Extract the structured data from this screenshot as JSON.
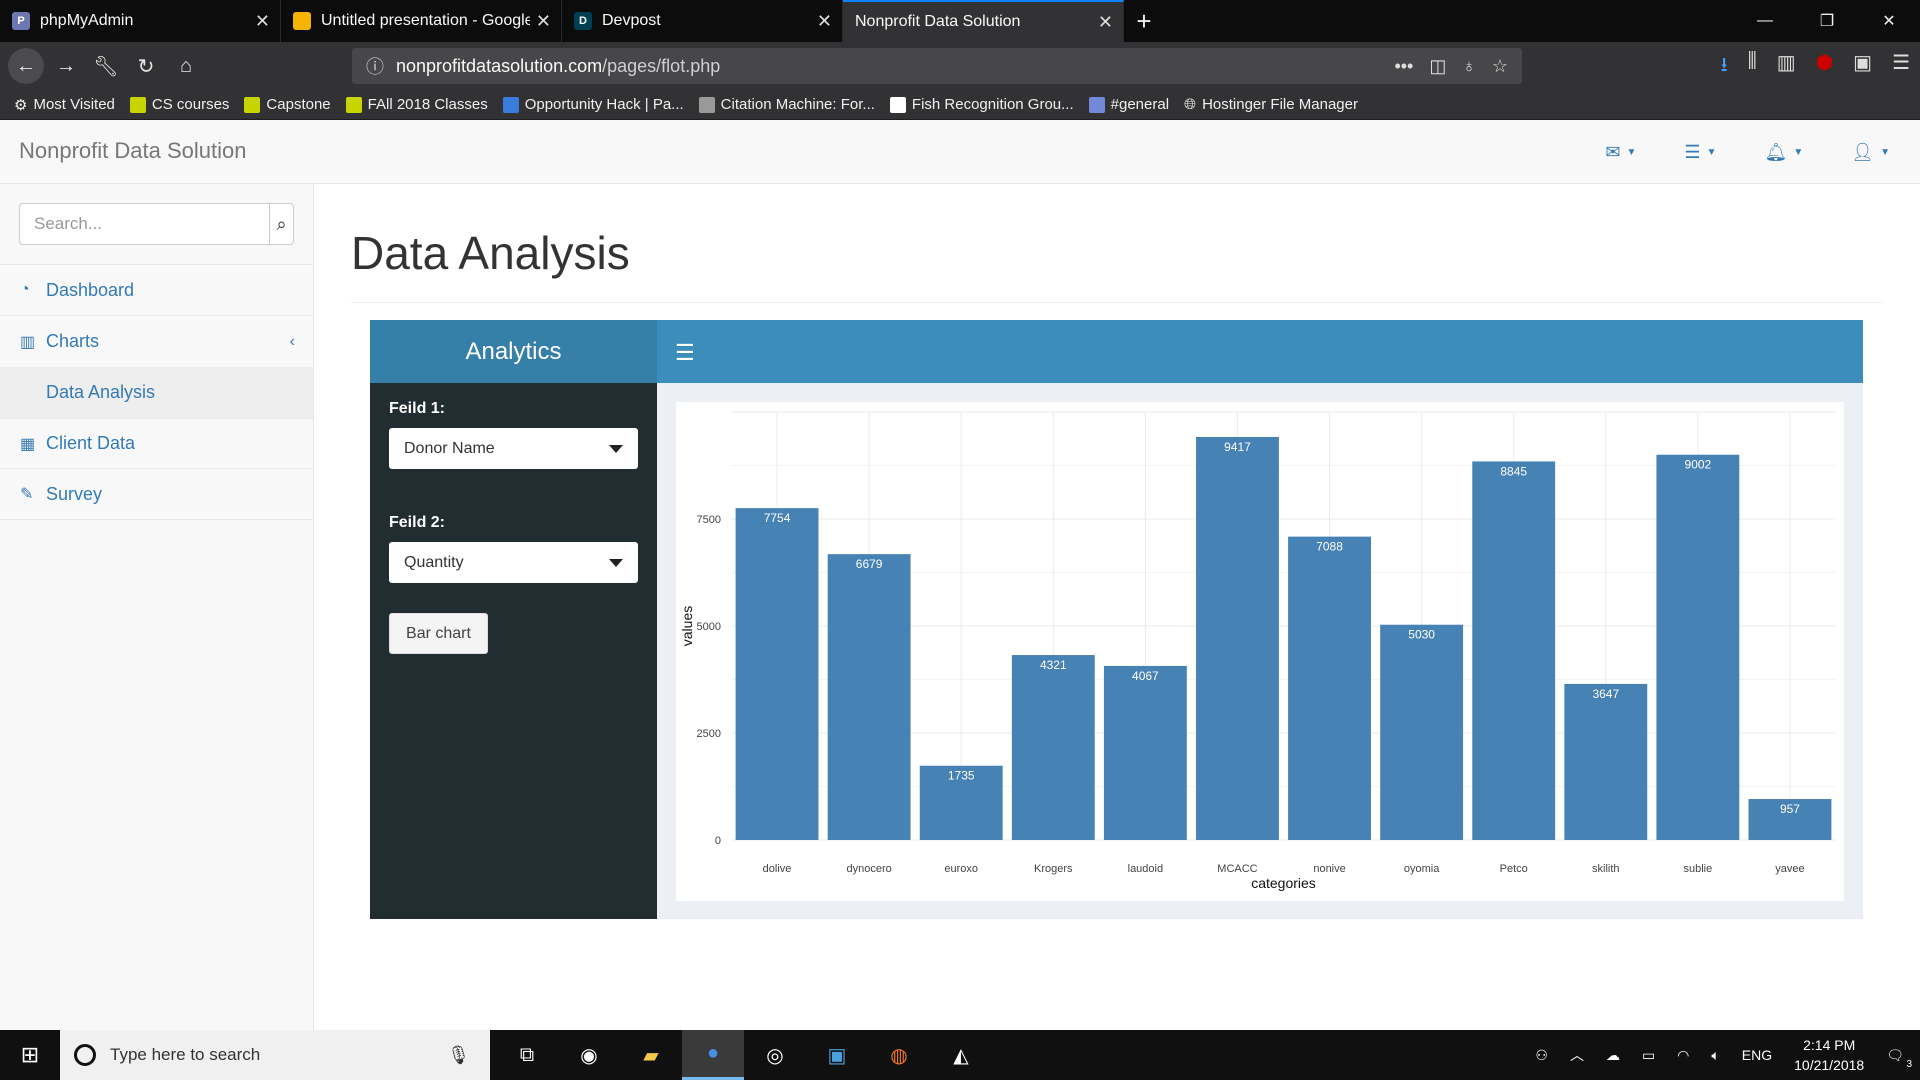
{
  "browser": {
    "tabs": [
      {
        "title": "phpMyAdmin",
        "icon": "phpmyadmin-icon",
        "color": "#6c78af"
      },
      {
        "title": "Untitled presentation - Google",
        "icon": "slides-icon",
        "color": "#f4b400"
      },
      {
        "title": "Devpost",
        "icon": "devpost-icon",
        "color": "#003e54"
      },
      {
        "title": "Nonprofit Data Solution",
        "icon": "",
        "color": ""
      }
    ],
    "url_domain": "nonprofitdatasolution.com",
    "url_path": "/pages/flot.php",
    "bookmarks": [
      {
        "label": "Most Visited",
        "color": "#888888"
      },
      {
        "label": "CS courses",
        "color": "#c8d400"
      },
      {
        "label": "Capstone",
        "color": "#c8d400"
      },
      {
        "label": "FAll 2018 Classes",
        "color": "#c8d400"
      },
      {
        "label": "Opportunity Hack | Pa...",
        "color": "#3b7ddd"
      },
      {
        "label": "Citation Machine: For...",
        "color": "#999999"
      },
      {
        "label": "Fish Recognition Grou...",
        "color": "#ffffff"
      },
      {
        "label": "#general",
        "color": "#7289da"
      },
      {
        "label": "Hostinger File Manager",
        "color": "#bbbbbb"
      }
    ]
  },
  "app": {
    "brand": "Nonprofit Data Solution",
    "search_placeholder": "Search...",
    "menu": {
      "dashboard": "Dashboard",
      "charts": "Charts",
      "data_analysis": "Data Analysis",
      "client_data": "Client Data",
      "survey": "Survey"
    },
    "page_title": "Data Analysis",
    "panel": {
      "title": "Analytics",
      "field1_label": "Feild 1:",
      "field1_value": "Donor Name",
      "field2_label": "Feild 2:",
      "field2_value": "Quantity",
      "button": "Bar chart"
    }
  },
  "chart_data": {
    "type": "bar",
    "categories": [
      "dolive",
      "dynocero",
      "euroxo",
      "Krogers",
      "laudoid",
      "MCACC",
      "nonive",
      "oyomia",
      "Petco",
      "skilith",
      "sublie",
      "yavee"
    ],
    "values": [
      7754,
      6679,
      1735,
      4321,
      4067,
      9417,
      7088,
      5030,
      8845,
      3647,
      9002,
      957
    ],
    "xlabel": "categories",
    "ylabel": "values",
    "yticks": [
      0,
      2500,
      5000,
      7500
    ],
    "ylim": [
      0,
      10000
    ],
    "bar_color": "#4682b4",
    "grid": true
  },
  "taskbar": {
    "search_placeholder": "Type here to search",
    "lang": "ENG",
    "time": "2:14 PM",
    "date": "10/21/2018",
    "notifications": "3"
  }
}
